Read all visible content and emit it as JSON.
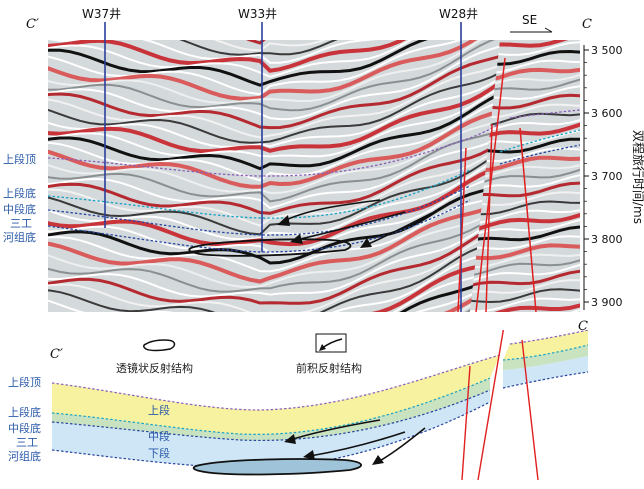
{
  "corners": {
    "left": "C′",
    "right": "C",
    "left_bottom": "C′",
    "right_bottom": "C"
  },
  "direction": "SE",
  "wells": [
    "W37井",
    "W33井",
    "W28井"
  ],
  "axis": {
    "label": "双程旅行时间/ms",
    "ticks": [
      "3 500",
      "3 600",
      "3 700",
      "3 800",
      "3 900"
    ],
    "tick_values": [
      3500,
      3600,
      3700,
      3800,
      3900
    ]
  },
  "seismic_labels": {
    "upper_top": "上段顶",
    "upper_base": "上段底",
    "middle_base": "中段底",
    "sangong_line1": "三工",
    "sangong_line2": "河组底"
  },
  "legend": {
    "lens": "透镜状反射结构",
    "progradation": "前积反射结构"
  },
  "section_labels": {
    "upper_top": "上段顶",
    "upper_base": "上段底",
    "middle_base": "中段底",
    "sangong_line1": "三工",
    "sangong_line2": "河组底",
    "upper": "上段",
    "middle": "中段",
    "lower": "下段"
  },
  "colors": {
    "upper_fill": "#f7f2a0",
    "middle_fill": "#c9e2c0",
    "lower_fill": "#cfe6f6",
    "fault": "#e02020",
    "well": "#2a3f9a",
    "horizon_purple": "#8a5fb8",
    "horizon_cyan": "#19a3c4",
    "horizon_blue": "#2747a0"
  }
}
